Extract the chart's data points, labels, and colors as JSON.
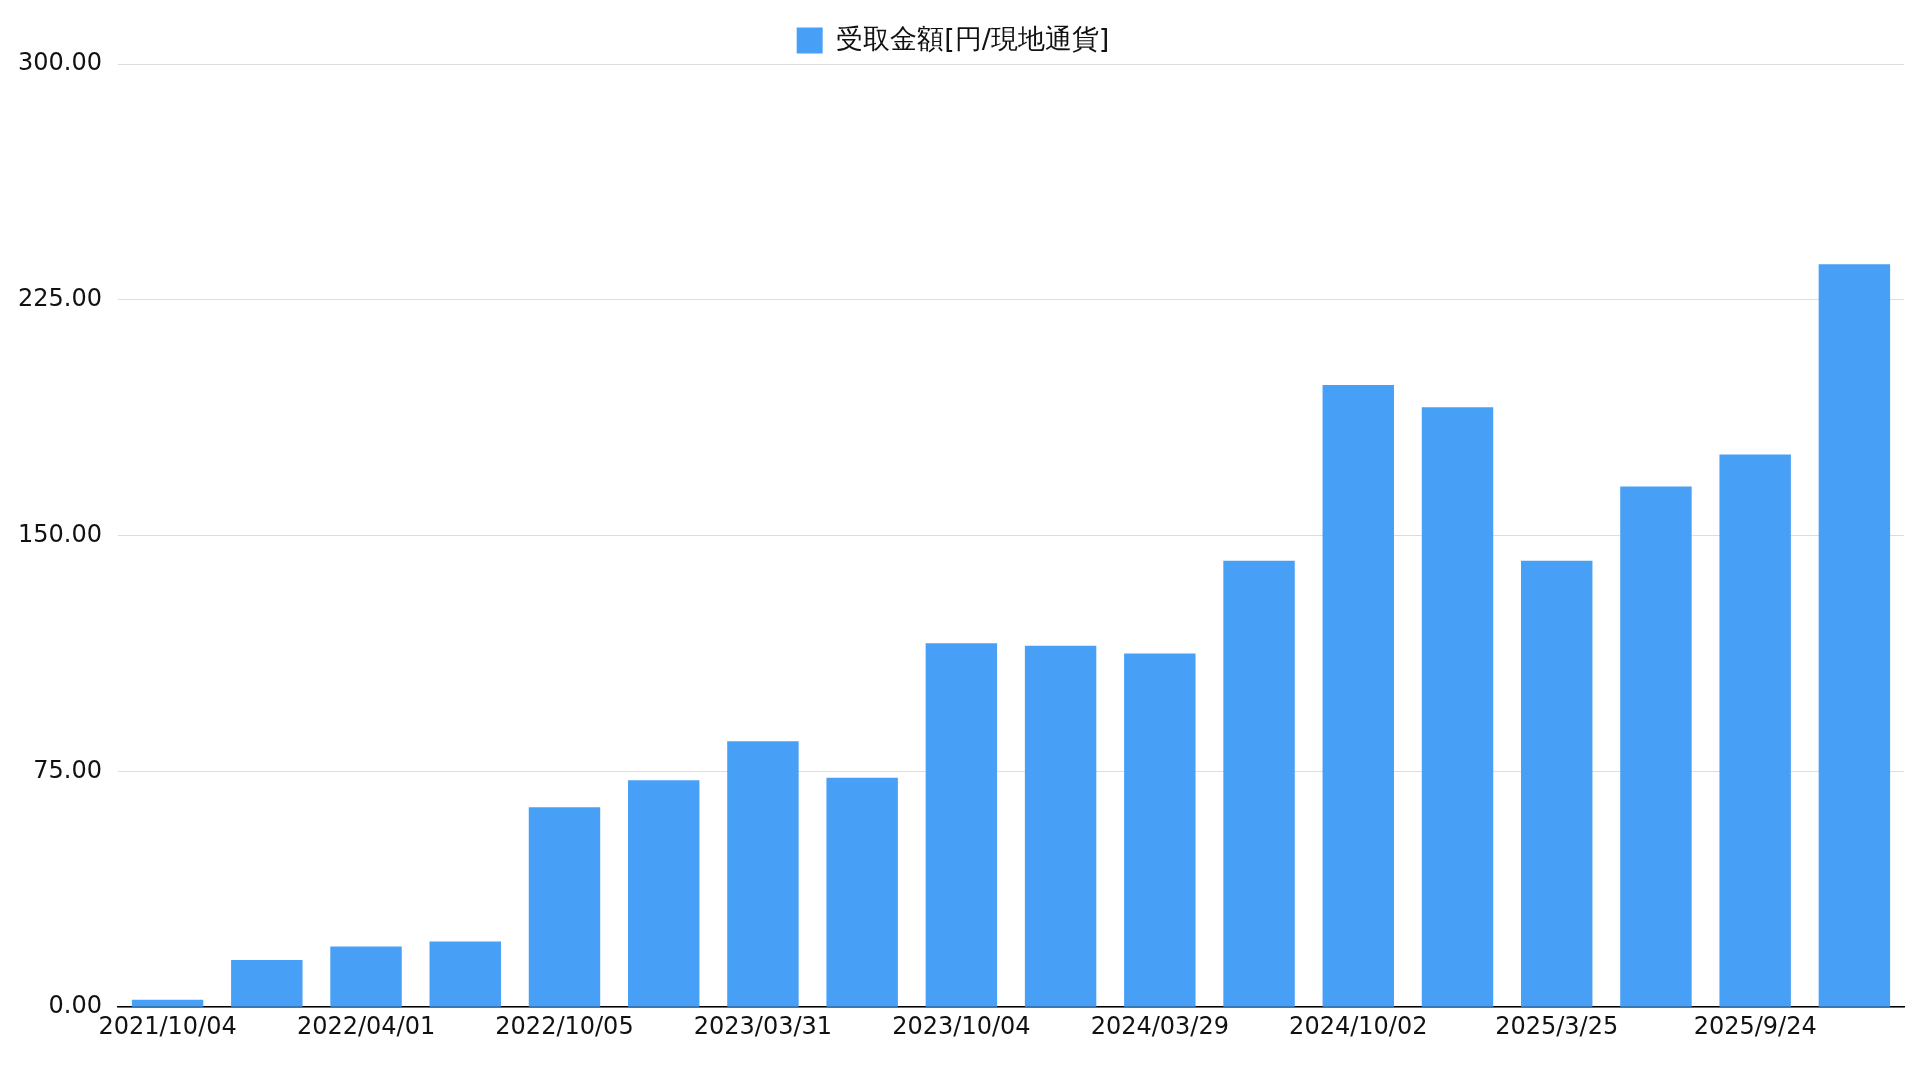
{
  "chart_data": {
    "type": "bar",
    "legend": "top",
    "grid": "y",
    "categories": [
      "2021/10/04",
      null,
      "2022/04/01",
      null,
      "2022/10/05",
      null,
      "2023/03/31",
      null,
      "2023/10/04",
      null,
      "2024/03/29",
      null,
      "2024/10/02",
      null,
      "2025/3/25",
      null,
      "2025/9/24",
      null
    ],
    "series": [
      {
        "name": "受取金額[円/現地通貨]",
        "color": "#489ff6",
        "values": [
          2.4,
          15.0,
          19.3,
          20.9,
          63.6,
          72.2,
          84.6,
          73.0,
          115.8,
          115.0,
          112.5,
          142.0,
          197.9,
          190.8,
          142.0,
          165.6,
          175.8,
          236.3
        ]
      }
    ],
    "ylim": [
      0,
      300
    ],
    "yticks": [
      {
        "value": 0,
        "label": "0.00"
      },
      {
        "value": 75,
        "label": "75.00"
      },
      {
        "value": 150,
        "label": "150.00"
      },
      {
        "value": 225,
        "label": "225.00"
      },
      {
        "value": 300,
        "label": "300.00"
      }
    ]
  }
}
